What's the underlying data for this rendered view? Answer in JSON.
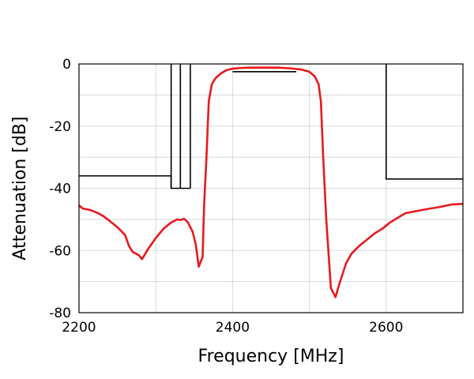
{
  "chart_data": {
    "type": "line",
    "xlabel": "Frequency [MHz]",
    "ylabel": "Attenuation [dB]",
    "xlim": [
      2200,
      2700
    ],
    "ylim": [
      -80,
      0
    ],
    "x_ticks": [
      "2200",
      "2400",
      "2600"
    ],
    "y_ticks": [
      "0",
      "-20",
      "-40",
      "-60",
      "-80"
    ],
    "grid": true,
    "legend": "none",
    "colors": {
      "response": "#e8191c",
      "mask": "#000000",
      "grid": "#d9d9d9"
    },
    "series": [
      {
        "role": "filter-response",
        "points": [
          [
            2200,
            -45.5
          ],
          [
            2205,
            -46.5
          ],
          [
            2215,
            -47.0
          ],
          [
            2225,
            -48.0
          ],
          [
            2232,
            -49.0
          ],
          [
            2240,
            -50.5
          ],
          [
            2250,
            -52.5
          ],
          [
            2260,
            -55.0
          ],
          [
            2265,
            -58.5
          ],
          [
            2270,
            -60.5
          ],
          [
            2278,
            -61.5
          ],
          [
            2282,
            -62.8
          ],
          [
            2290,
            -59.5
          ],
          [
            2300,
            -56.0
          ],
          [
            2310,
            -53.0
          ],
          [
            2320,
            -51.0
          ],
          [
            2328,
            -50.0
          ],
          [
            2332,
            -50.2
          ],
          [
            2337,
            -49.8
          ],
          [
            2342,
            -51.0
          ],
          [
            2348,
            -54.0
          ],
          [
            2352,
            -58.0
          ],
          [
            2356,
            -65.2
          ],
          [
            2361,
            -62.0
          ],
          [
            2363,
            -45.0
          ],
          [
            2366,
            -30.0
          ],
          [
            2369,
            -12.0
          ],
          [
            2373,
            -6.5
          ],
          [
            2378,
            -4.5
          ],
          [
            2385,
            -3.0
          ],
          [
            2392,
            -2.0
          ],
          [
            2400,
            -1.5
          ],
          [
            2410,
            -1.3
          ],
          [
            2420,
            -1.2
          ],
          [
            2440,
            -1.2
          ],
          [
            2460,
            -1.2
          ],
          [
            2475,
            -1.4
          ],
          [
            2490,
            -1.8
          ],
          [
            2500,
            -2.5
          ],
          [
            2507,
            -4.0
          ],
          [
            2512,
            -6.5
          ],
          [
            2515,
            -12.0
          ],
          [
            2518,
            -30.0
          ],
          [
            2522,
            -50.0
          ],
          [
            2528,
            -72.0
          ],
          [
            2534,
            -75.0
          ],
          [
            2540,
            -70.0
          ],
          [
            2548,
            -64.0
          ],
          [
            2555,
            -61.0
          ],
          [
            2565,
            -58.5
          ],
          [
            2575,
            -56.5
          ],
          [
            2585,
            -54.5
          ],
          [
            2595,
            -53.0
          ],
          [
            2605,
            -51.0
          ],
          [
            2615,
            -49.5
          ],
          [
            2625,
            -48.0
          ],
          [
            2640,
            -47.3
          ],
          [
            2655,
            -46.6
          ],
          [
            2670,
            -46.0
          ],
          [
            2685,
            -45.2
          ],
          [
            2700,
            -45.0
          ]
        ]
      },
      {
        "role": "attenuation-mask",
        "segments": [
          [
            [
              2200,
              -36
            ],
            [
              2320,
              -36
            ],
            [
              2320,
              -40
            ],
            [
              2345,
              -40
            ]
          ],
          [
            [
              2320,
              0
            ],
            [
              2320,
              -40
            ]
          ],
          [
            [
              2332,
              0
            ],
            [
              2332,
              -40
            ]
          ],
          [
            [
              2345,
              0
            ],
            [
              2345,
              -40
            ]
          ],
          [
            [
              2600,
              0
            ],
            [
              2600,
              -37
            ],
            [
              2700,
              -37
            ]
          ],
          [
            [
              2400,
              -2.5
            ],
            [
              2483,
              -2.5
            ]
          ]
        ]
      }
    ]
  }
}
